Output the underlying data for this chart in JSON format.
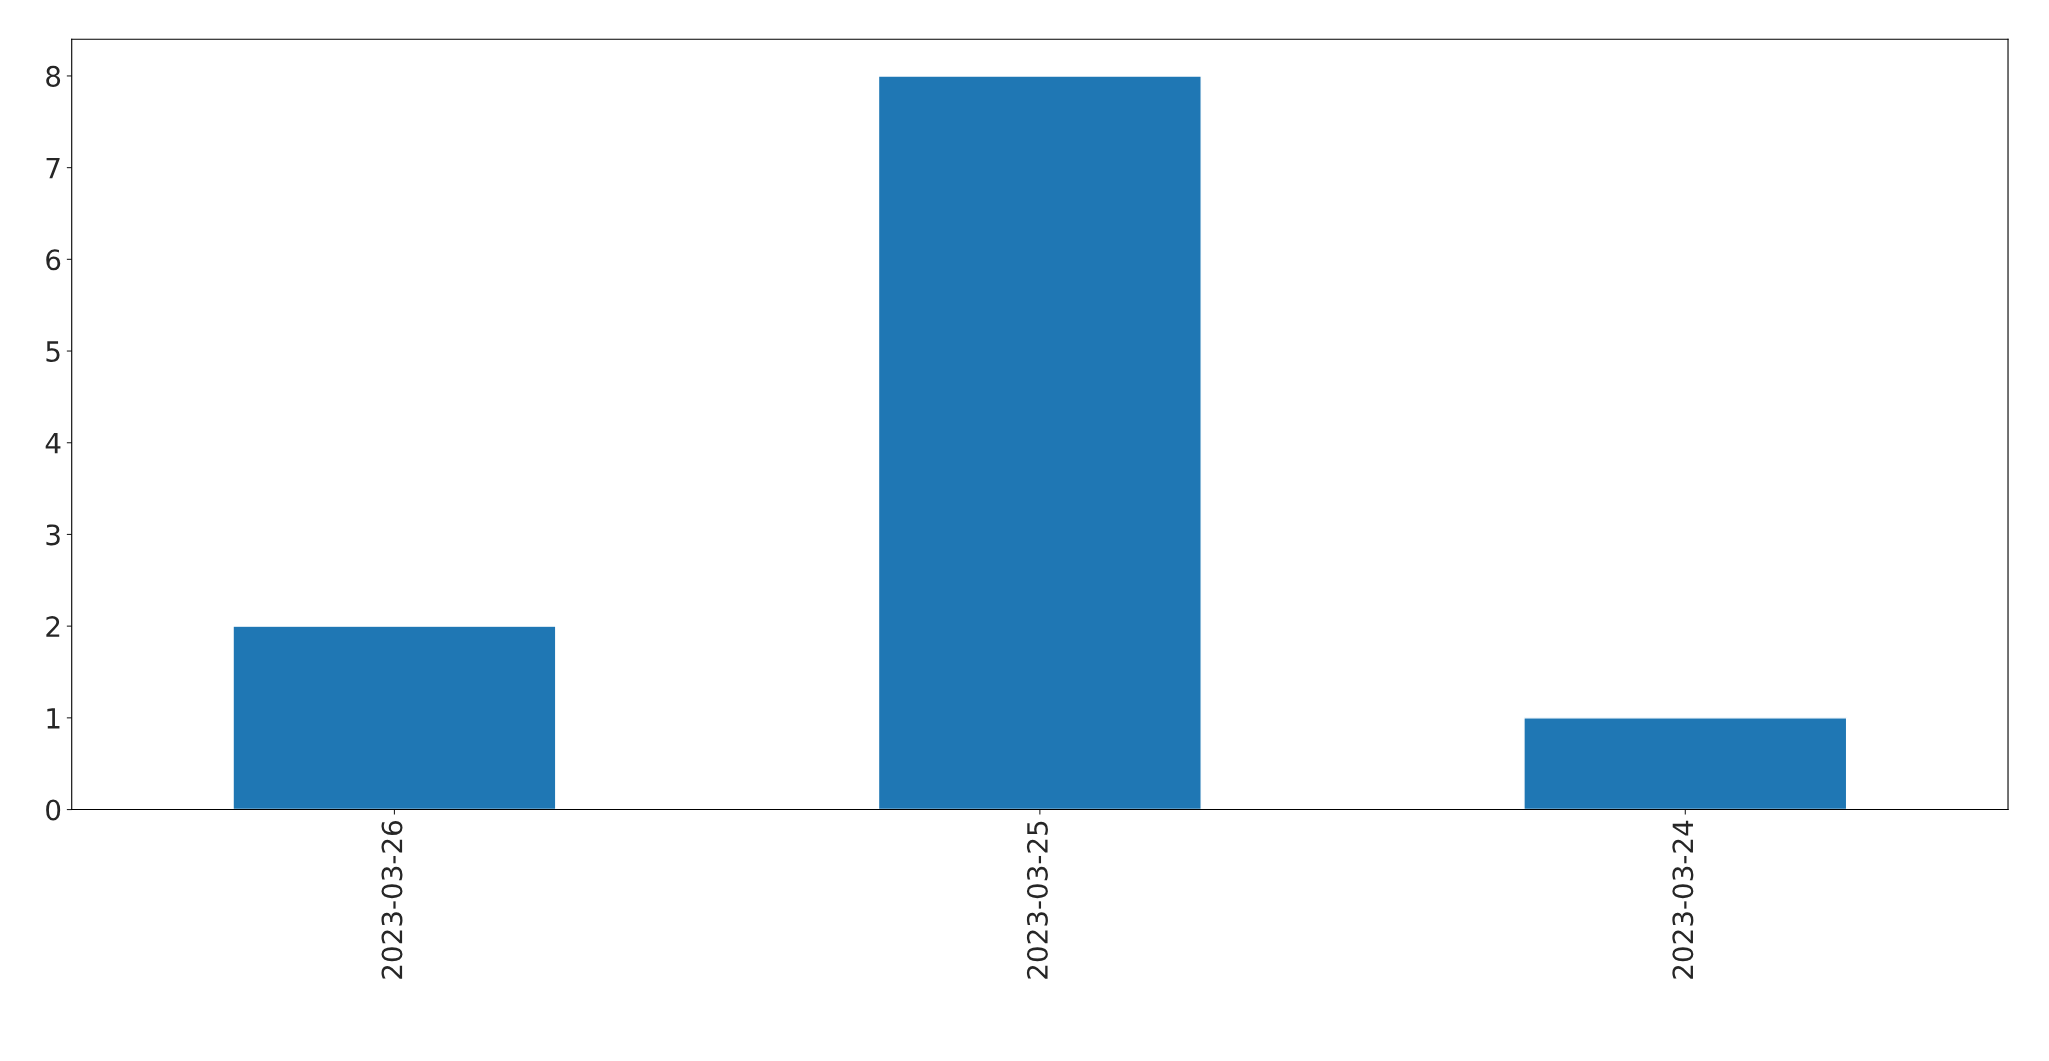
{
  "chart_data": {
    "type": "bar",
    "categories": [
      "2023-03-26",
      "2023-03-25",
      "2023-03-24"
    ],
    "values": [
      2,
      8,
      1
    ],
    "color": "#1f77b4",
    "ylim": [
      0,
      8.4
    ],
    "yticks": [
      0,
      1,
      2,
      3,
      4,
      5,
      6,
      7,
      8
    ],
    "grid": false,
    "legend": false
  }
}
